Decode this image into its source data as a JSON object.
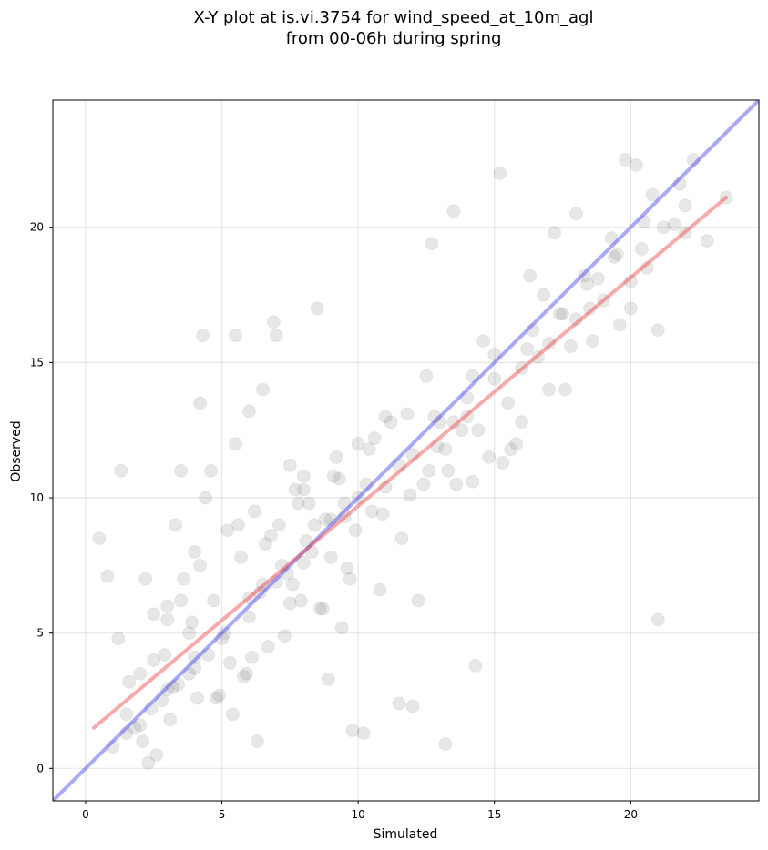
{
  "chart_data": {
    "type": "scatter",
    "title": "X-Y plot at is.vi.3754 for wind_speed_at_10m_agl\nfrom 00-06h during spring",
    "title_lines": [
      "X-Y plot at is.vi.3754 for wind_speed_at_10m_agl",
      "from 00-06h during spring"
    ],
    "xlabel": "Simulated",
    "ylabel": "Observed",
    "xlim": [
      -1.2,
      24.7
    ],
    "ylim": [
      -1.2,
      24.7
    ],
    "xticks": [
      0,
      5,
      10,
      15,
      20
    ],
    "yticks": [
      0,
      5,
      10,
      15,
      20
    ],
    "xtick_labels": [
      "0",
      "5",
      "10",
      "15",
      "20"
    ],
    "ytick_labels": [
      "0",
      "5",
      "10",
      "15",
      "20"
    ],
    "grid": true,
    "point_color": "#555555",
    "point_alpha": 0.14,
    "lines": [
      {
        "color": "#3333ee",
        "x": [
          -1.2,
          24.7
        ],
        "y": [
          -1.2,
          24.7
        ]
      },
      {
        "color": "#ee3333",
        "x": [
          0.3,
          23.5
        ],
        "y": [
          1.5,
          21.1
        ]
      }
    ],
    "x": [
      3.2,
      2.4,
      4.0,
      1.5,
      5.1,
      3.8,
      6.5,
      2.8,
      4.5,
      7.2,
      8.1,
      6.0,
      9.5,
      10.3,
      11.5,
      12.8,
      13.5,
      14.2,
      15.0,
      16.2,
      17.5,
      18.3,
      19.5,
      20.5,
      21.2,
      22.3,
      3.5,
      5.5,
      7.0,
      8.5,
      10.0,
      11.0,
      12.5,
      14.0,
      15.5,
      17.0,
      18.5,
      20.0,
      1.0,
      2.0,
      3.0,
      4.0,
      5.0,
      6.0,
      7.0,
      8.0,
      9.0,
      10.0,
      11.0,
      12.0,
      13.0,
      14.0,
      15.0,
      16.0,
      17.0,
      18.0,
      19.0,
      20.0,
      21.0,
      22.0,
      23.5,
      0.5,
      1.3,
      2.6,
      4.3,
      4.6,
      5.4,
      6.3,
      6.9,
      7.8,
      8.3,
      9.2,
      9.7,
      10.6,
      11.8,
      12.2,
      13.2,
      13.8,
      14.6,
      15.3,
      16.6,
      17.8,
      18.8,
      19.3,
      20.8,
      21.6,
      22.8,
      21.0,
      16.0,
      13.2,
      14.3,
      9.8,
      10.2,
      12.0,
      11.5,
      8.7,
      7.3,
      15.2,
      14.2,
      13.5,
      12.7,
      16.3,
      17.2,
      18.0,
      19.8,
      20.2,
      21.8,
      0.8,
      1.8,
      2.2,
      3.3,
      4.8,
      5.8,
      6.7,
      7.5,
      8.9,
      9.4,
      1.2,
      1.6,
      2.5,
      3.0,
      3.6,
      4.2,
      5.2,
      6.2,
      7.1,
      8.2,
      9.1,
      10.4,
      11.2,
      12.4,
      13.3,
      14.4,
      15.6,
      16.4,
      17.4,
      18.4,
      19.4,
      20.4,
      22.0,
      2.1,
      3.1,
      4.1,
      5.3,
      6.4,
      7.4,
      8.4,
      9.3,
      10.5,
      11.6,
      12.6,
      13.6,
      14.8,
      15.8,
      16.8,
      17.6,
      18.6,
      19.6,
      20.6,
      4.4,
      5.6,
      6.6,
      7.6,
      8.6,
      9.6,
      10.8,
      3.8,
      4.7,
      5.7,
      6.8,
      7.7,
      8.8,
      9.9,
      10.9,
      11.9,
      12.9,
      2.3,
      2.9,
      3.4,
      3.9,
      4.9,
      5.9,
      6.1,
      7.9,
      8.0,
      9.0,
      4.2,
      5.5,
      6.0,
      6.5,
      7.5,
      8.0,
      9.5,
      4.0,
      3.5,
      3.0,
      2.5,
      2.0,
      1.5
    ],
    "y": [
      3.0,
      2.2,
      4.1,
      1.3,
      5.0,
      3.5,
      6.8,
      2.5,
      4.2,
      7.5,
      8.4,
      6.3,
      9.8,
      10.5,
      11.2,
      13.0,
      12.8,
      14.5,
      15.3,
      15.5,
      16.8,
      18.2,
      19.0,
      20.2,
      20.0,
      22.5,
      11.0,
      16.0,
      16.0,
      17.0,
      12.0,
      13.0,
      14.5,
      13.0,
      13.5,
      14.0,
      17.0,
      18.0,
      0.8,
      1.6,
      2.9,
      3.7,
      4.8,
      5.6,
      6.9,
      7.6,
      9.2,
      10.0,
      10.4,
      11.6,
      12.8,
      13.7,
      14.4,
      14.8,
      15.7,
      16.6,
      17.3,
      17.0,
      16.2,
      19.8,
      21.1,
      8.5,
      11.0,
      0.5,
      16.0,
      11.0,
      2.0,
      1.0,
      16.5,
      9.8,
      8.0,
      11.5,
      7.0,
      12.2,
      13.1,
      6.2,
      11.8,
      12.5,
      15.8,
      11.3,
      15.2,
      15.6,
      18.1,
      19.6,
      21.2,
      20.1,
      19.5,
      5.5,
      12.8,
      0.9,
      3.8,
      1.4,
      1.3,
      2.3,
      2.4,
      5.9,
      4.9,
      22.0,
      10.6,
      20.6,
      19.4,
      18.2,
      19.8,
      20.5,
      22.5,
      22.3,
      21.6,
      7.1,
      1.5,
      7.0,
      9.0,
      2.6,
      3.4,
      4.5,
      6.1,
      3.3,
      5.2,
      4.8,
      3.2,
      5.7,
      6.0,
      7.0,
      7.5,
      8.8,
      9.5,
      9.0,
      9.8,
      10.8,
      11.8,
      12.8,
      10.5,
      11.0,
      12.5,
      11.8,
      16.2,
      16.8,
      17.9,
      18.9,
      19.2,
      20.8,
      1.0,
      1.8,
      2.6,
      3.9,
      6.5,
      7.2,
      9.0,
      10.7,
      9.5,
      8.5,
      11.0,
      10.5,
      11.5,
      12.0,
      17.5,
      14.0,
      15.8,
      16.4,
      18.5,
      10.0,
      9.0,
      8.3,
      6.8,
      5.9,
      7.4,
      6.6,
      5.0,
      6.2,
      7.8,
      8.6,
      10.3,
      9.2,
      8.8,
      9.4,
      10.1,
      11.9,
      0.2,
      4.2,
      3.1,
      5.4,
      2.7,
      3.5,
      4.1,
      6.2,
      10.8,
      7.8,
      13.5,
      12.0,
      13.2,
      14.0,
      11.2,
      10.3,
      9.3,
      8.0,
      6.2,
      5.5,
      4.0,
      3.5,
      2.0
    ]
  }
}
